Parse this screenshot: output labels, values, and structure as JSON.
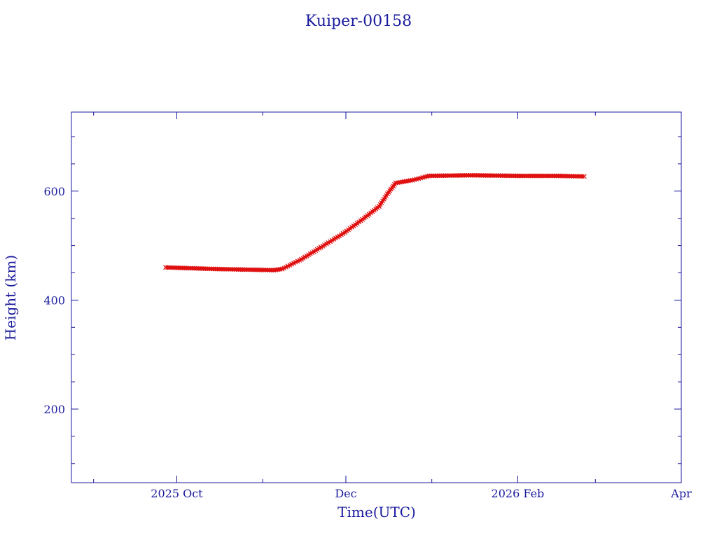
{
  "chart_data": {
    "type": "scatter",
    "title": "Kuiper-00158",
    "xlabel": "Time(UTC)",
    "ylabel": "Height (km)",
    "xlim": [
      "2025-08-24",
      "2026-04-01"
    ],
    "ylim": [
      65,
      745
    ],
    "x_major_ticks": [
      {
        "date": "2025-10-01",
        "label": "2025 Oct"
      },
      {
        "date": "2025-12-01",
        "label": "Dec"
      },
      {
        "date": "2026-02-01",
        "label": "2026 Feb"
      },
      {
        "date": "2026-04-01",
        "label": "Apr"
      }
    ],
    "x_minor_ticks": [
      "2025-09-01",
      "2025-11-01",
      "2026-01-01",
      "2026-03-01"
    ],
    "y_major_ticks": [
      {
        "value": 200,
        "label": "200"
      },
      {
        "value": 400,
        "label": "400"
      },
      {
        "value": 600,
        "label": "600"
      }
    ],
    "y_minor_ticks": [
      100,
      150,
      250,
      300,
      350,
      450,
      500,
      550,
      650,
      700
    ],
    "series": [
      {
        "color": "#e01010",
        "marker": "x",
        "x": [
          "2025-09-27",
          "2025-10-15",
          "2025-11-05",
          "2025-11-08",
          "2025-11-15",
          "2025-11-22",
          "2025-11-30",
          "2025-12-07",
          "2025-12-13",
          "2025-12-16",
          "2025-12-19",
          "2025-12-25",
          "2025-12-31",
          "2026-01-15",
          "2026-02-01",
          "2026-02-15",
          "2026-02-25"
        ],
        "y": [
          460,
          457,
          455,
          457,
          475,
          497,
          522,
          548,
          572,
          595,
          615,
          620,
          628,
          629,
          628,
          628,
          627
        ]
      }
    ]
  }
}
